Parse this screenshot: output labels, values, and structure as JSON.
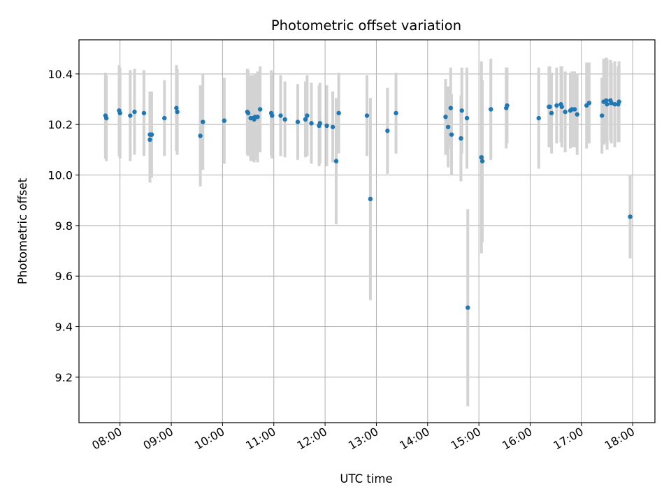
{
  "chart_data": {
    "type": "scatter",
    "title": "Photometric offset variation",
    "xlabel": "UTC time",
    "ylabel": "Photometric offset",
    "x_tick_labels": [
      "08:00",
      "09:00",
      "10:00",
      "11:00",
      "12:00",
      "13:00",
      "14:00",
      "15:00",
      "16:00",
      "17:00",
      "18:00"
    ],
    "y_ticks": [
      9.2,
      9.4,
      9.6,
      9.8,
      10.0,
      10.2,
      10.4
    ],
    "y_tick_labels": [
      "9.2",
      "9.4",
      "9.6",
      "9.8",
      "10.0",
      "10.2",
      "10.4"
    ],
    "xlim": [
      "07:12",
      "18:26"
    ],
    "ylim": [
      9.02,
      10.535
    ],
    "grid": true,
    "colors": {
      "points": "#1f77b4",
      "error_bars": "#d3d3d3",
      "grid": "#b0b0b0"
    },
    "series": [
      {
        "x": [
          "07:43",
          "07:44",
          "07:59",
          "08:00",
          "08:12",
          "08:17",
          "08:28",
          "08:35",
          "08:35",
          "08:37",
          "08:37",
          "08:52",
          "09:06",
          "09:07",
          "09:34",
          "09:37",
          "10:02",
          "10:29",
          "10:30",
          "10:33",
          "10:36",
          "10:37",
          "10:38",
          "10:41",
          "10:44",
          "10:57",
          "10:58",
          "11:08",
          "11:13",
          "11:28",
          "11:37",
          "11:39",
          "11:44",
          "11:53",
          "11:54",
          "12:02",
          "12:09",
          "12:13",
          "12:16",
          "12:49",
          "12:53",
          "13:13",
          "13:23",
          "14:21",
          "14:24",
          "14:27",
          "14:28",
          "14:39",
          "14:40",
          "14:46",
          "14:47",
          "15:03",
          "15:04",
          "15:14",
          "15:32",
          "15:33",
          "16:10",
          "16:22",
          "16:23",
          "16:25",
          "16:31",
          "16:36",
          "16:37",
          "16:41",
          "16:47",
          "16:49",
          "16:52",
          "16:55",
          "17:06",
          "17:09",
          "17:24",
          "17:26",
          "17:29",
          "17:30",
          "17:34",
          "17:35",
          "17:39",
          "17:43",
          "17:44",
          "17:57"
        ],
        "y": [
          10.235,
          10.225,
          10.255,
          10.245,
          10.235,
          10.25,
          10.245,
          10.16,
          10.14,
          10.16,
          10.16,
          10.225,
          10.265,
          10.25,
          10.155,
          10.21,
          10.215,
          10.25,
          10.245,
          10.225,
          10.225,
          10.22,
          10.23,
          10.23,
          10.26,
          10.245,
          10.235,
          10.235,
          10.22,
          10.21,
          10.22,
          10.235,
          10.205,
          10.195,
          10.205,
          10.195,
          10.19,
          10.055,
          10.245,
          10.235,
          9.905,
          10.175,
          10.245,
          10.23,
          10.19,
          10.265,
          10.16,
          10.145,
          10.255,
          10.225,
          9.475,
          10.07,
          10.055,
          10.26,
          10.265,
          10.275,
          10.225,
          10.27,
          10.27,
          10.245,
          10.275,
          10.28,
          10.27,
          10.25,
          10.255,
          10.26,
          10.26,
          10.24,
          10.275,
          10.285,
          10.235,
          10.29,
          10.295,
          10.28,
          10.295,
          10.285,
          10.28,
          10.28,
          10.29,
          9.835
        ],
        "err": [
          0.17,
          0.17,
          0.18,
          0.18,
          0.18,
          0.17,
          0.17,
          0.17,
          0.17,
          0.17,
          0.17,
          0.15,
          0.17,
          0.17,
          0.2,
          0.19,
          0.17,
          0.17,
          0.17,
          0.17,
          0.17,
          0.17,
          0.17,
          0.18,
          0.17,
          0.17,
          0.17,
          0.16,
          0.15,
          0.15,
          0.15,
          0.16,
          0.16,
          0.16,
          0.16,
          0.16,
          0.14,
          0.25,
          0.16,
          0.16,
          0.4,
          0.17,
          0.16,
          0.15,
          0.16,
          0.16,
          0.16,
          0.17,
          0.17,
          0.2,
          0.39,
          0.38,
          0.32,
          0.2,
          0.16,
          0.15,
          0.2,
          0.16,
          0.16,
          0.16,
          0.15,
          0.15,
          0.16,
          0.16,
          0.15,
          0.15,
          0.15,
          0.16,
          0.17,
          0.16,
          0.15,
          0.17,
          0.17,
          0.18,
          0.16,
          0.16,
          0.17,
          0.15,
          0.16,
          0.165
        ]
      }
    ]
  }
}
